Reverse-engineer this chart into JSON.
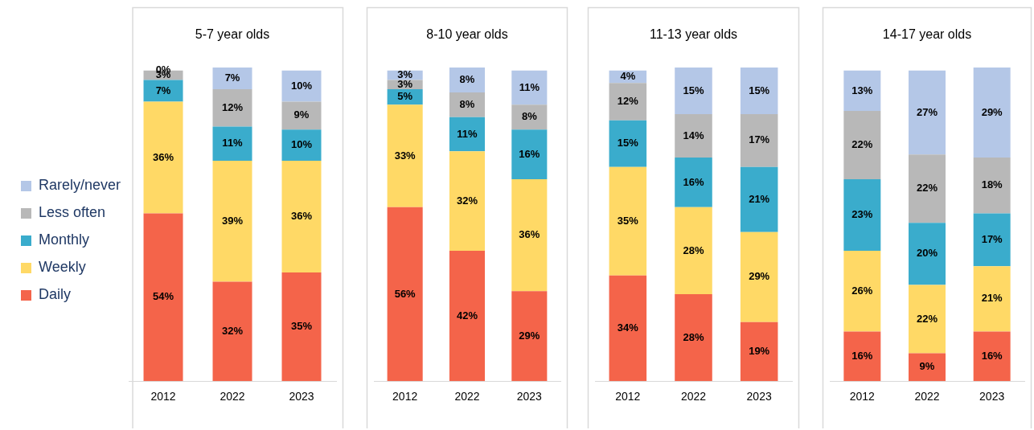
{
  "chart_data": [
    {
      "type": "bar",
      "title": "5-7 year olds",
      "categories": [
        "2012",
        "2022",
        "2023"
      ],
      "stacked": true,
      "legend": "left",
      "tick_labels": "x",
      "series": [
        {
          "name": "Daily",
          "color": "#f4644a",
          "values": [
            54,
            32,
            35
          ],
          "value_labels": [
            "54%",
            "32%",
            "35%"
          ]
        },
        {
          "name": "Weekly",
          "color": "#ffd966",
          "values": [
            36,
            39,
            36
          ],
          "value_labels": [
            "36%",
            "39%",
            "36%"
          ]
        },
        {
          "name": "Monthly",
          "color": "#3aaccc",
          "values": [
            7,
            11,
            10
          ],
          "value_labels": [
            "7%",
            "11%",
            "10%"
          ]
        },
        {
          "name": "Less often",
          "color": "#b8b8b8",
          "values": [
            3,
            12,
            9
          ],
          "value_labels": [
            "3%",
            "12%",
            "9%"
          ]
        },
        {
          "name": "Rarely/never",
          "color": "#b4c7e7",
          "values": [
            0,
            7,
            10
          ],
          "value_labels": [
            "0%",
            "7%",
            "10%"
          ]
        }
      ]
    },
    {
      "type": "bar",
      "title": "8-10 year olds",
      "categories": [
        "2012",
        "2022",
        "2023"
      ],
      "stacked": true,
      "tick_labels": "x",
      "series": [
        {
          "color": "#f4644a",
          "values": [
            56,
            42,
            29
          ],
          "value_labels": [
            "56%",
            "42%",
            "29%"
          ]
        },
        {
          "color": "#ffd966",
          "values": [
            33,
            32,
            36
          ],
          "value_labels": [
            "33%",
            "32%",
            "36%"
          ]
        },
        {
          "color": "#3aaccc",
          "values": [
            5,
            11,
            16
          ],
          "value_labels": [
            "5%",
            "11%",
            "16%"
          ]
        },
        {
          "color": "#b8b8b8",
          "values": [
            3,
            8,
            8
          ],
          "value_labels": [
            "3%",
            "8%",
            "8%"
          ]
        },
        {
          "color": "#b4c7e7",
          "values": [
            3,
            8,
            11
          ],
          "value_labels": [
            "3%",
            "8%",
            "11%"
          ]
        }
      ]
    },
    {
      "type": "bar",
      "title": "11-13 year olds",
      "categories": [
        "2012",
        "2022",
        "2023"
      ],
      "stacked": true,
      "tick_labels": "x",
      "series": [
        {
          "color": "#f4644a",
          "values": [
            34,
            28,
            19
          ],
          "value_labels": [
            "34%",
            "28%",
            "19%"
          ]
        },
        {
          "color": "#ffd966",
          "values": [
            35,
            28,
            29
          ],
          "value_labels": [
            "35%",
            "28%",
            "29%"
          ]
        },
        {
          "color": "#3aaccc",
          "values": [
            15,
            16,
            21
          ],
          "value_labels": [
            "15%",
            "16%",
            "21%"
          ]
        },
        {
          "color": "#b8b8b8",
          "values": [
            12,
            14,
            17
          ],
          "value_labels": [
            "12%",
            "14%",
            "17%"
          ]
        },
        {
          "color": "#b4c7e7",
          "values": [
            4,
            15,
            15
          ],
          "value_labels": [
            "4%",
            "15%",
            "15%"
          ]
        }
      ]
    },
    {
      "type": "bar",
      "title": "14-17 year olds",
      "categories": [
        "2012",
        "2022",
        "2023"
      ],
      "stacked": true,
      "tick_labels": "x",
      "series": [
        {
          "color": "#f4644a",
          "values": [
            16,
            9,
            16
          ],
          "value_labels": [
            "16%",
            "9%",
            "16%"
          ]
        },
        {
          "color": "#ffd966",
          "values": [
            26,
            22,
            21
          ],
          "value_labels": [
            "26%",
            "22%",
            "21%"
          ]
        },
        {
          "color": "#3aaccc",
          "values": [
            23,
            20,
            17
          ],
          "value_labels": [
            "23%",
            "20%",
            "17%"
          ]
        },
        {
          "color": "#b8b8b8",
          "values": [
            22,
            22,
            18
          ],
          "value_labels": [
            "22%",
            "22%",
            "18%"
          ]
        },
        {
          "color": "#b4c7e7",
          "values": [
            13,
            27,
            29
          ],
          "value_labels": [
            "13%",
            "27%",
            "29%"
          ]
        }
      ]
    }
  ]
}
